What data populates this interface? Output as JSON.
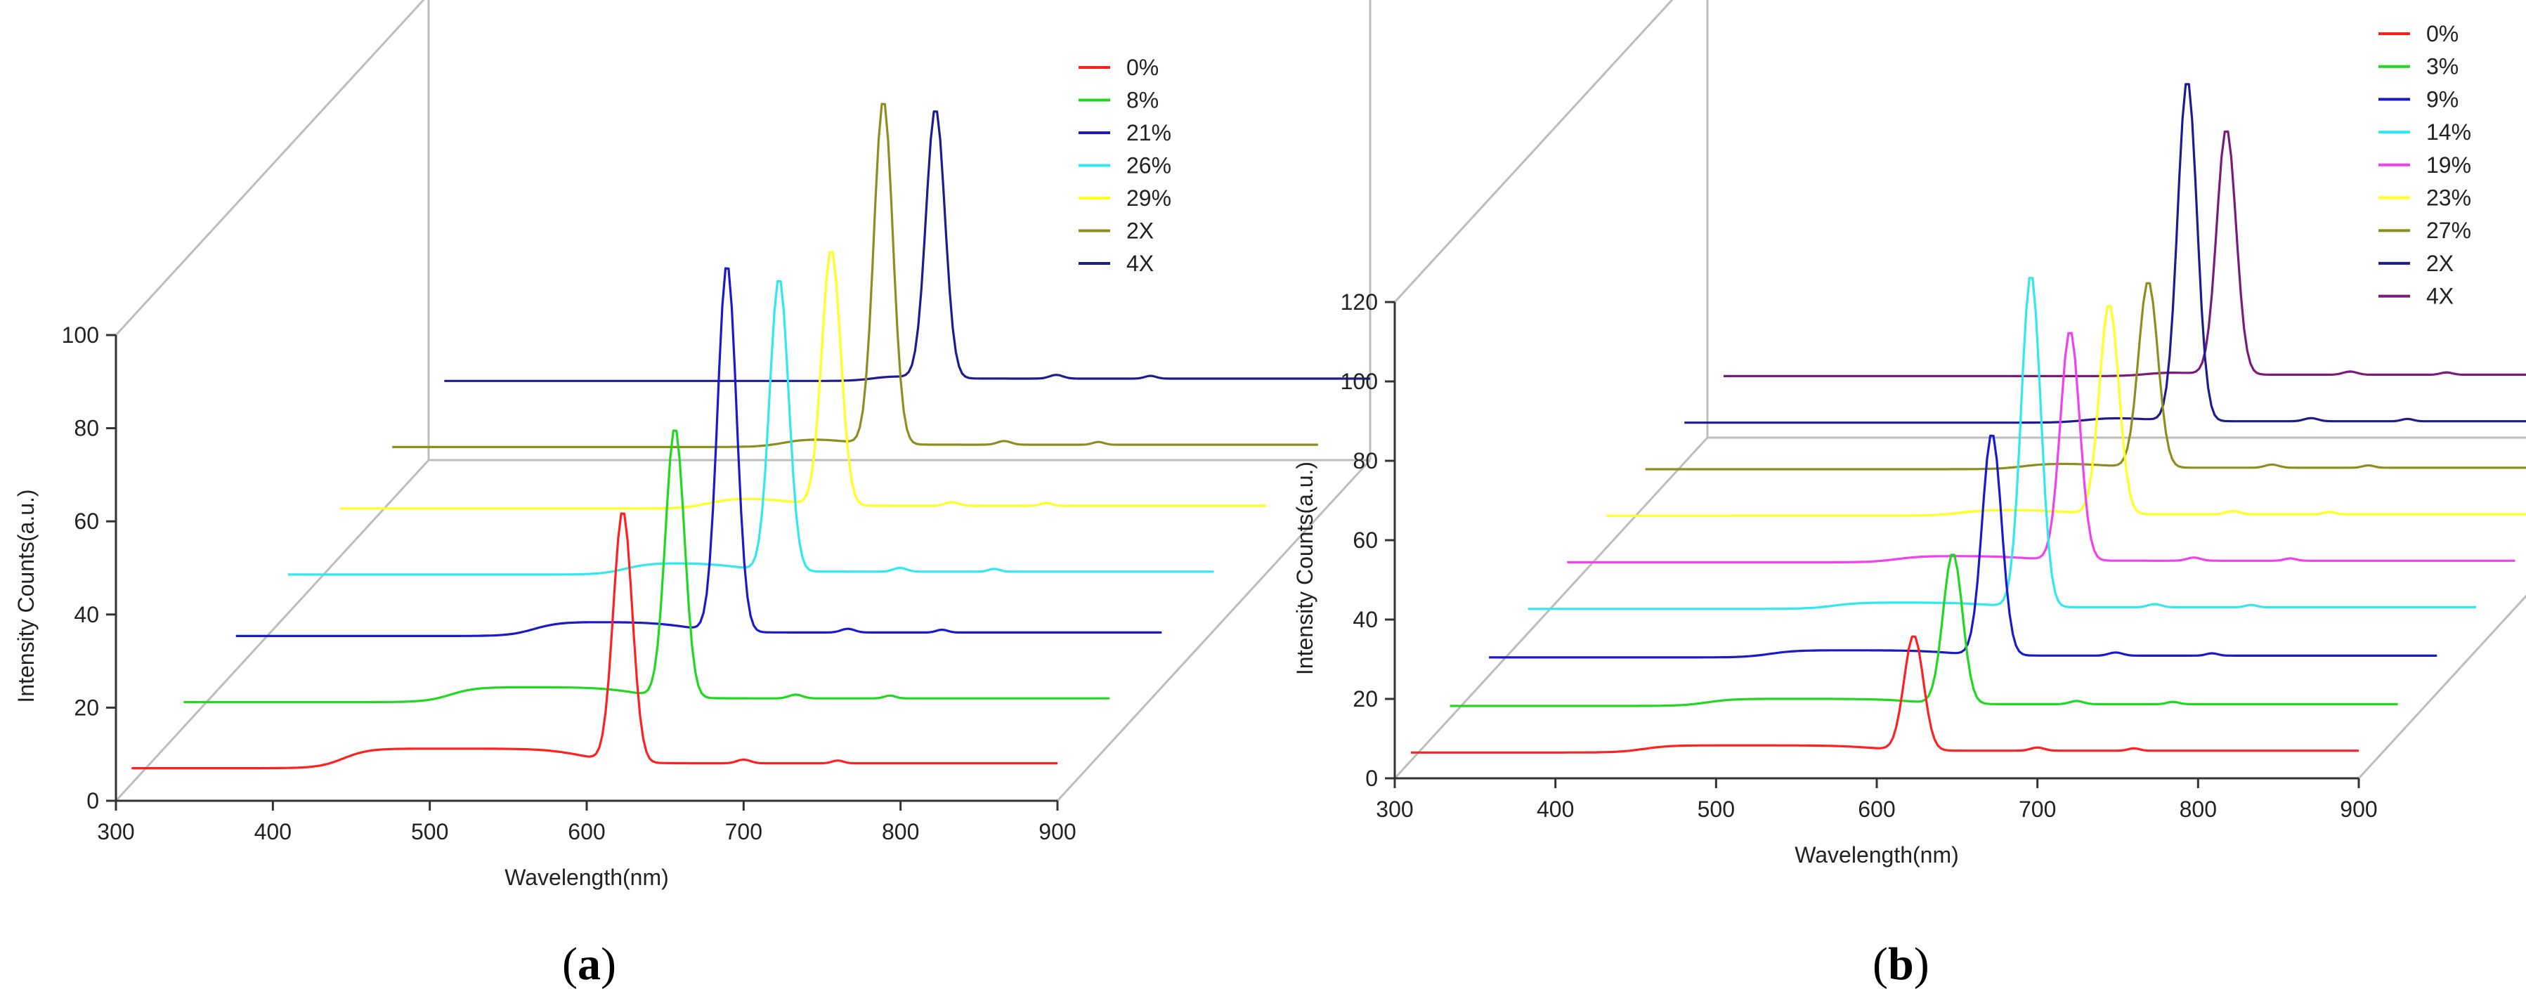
{
  "figure": {
    "panels": [
      {
        "id": "a",
        "label_open": "(",
        "label_letter": "a",
        "label_close": ")"
      },
      {
        "id": "b",
        "label_open": "(",
        "label_letter": "b",
        "label_close": ")"
      }
    ]
  },
  "chart_data": [
    {
      "type": "line",
      "style": "3d-waterfall",
      "panel": "a",
      "title": "",
      "xlabel": "Wavelength(nm)",
      "ylabel": "Intensity Counts(a.u.)",
      "xlim": [
        300,
        900
      ],
      "ylim": [
        0,
        100
      ],
      "xticks": [
        "300",
        "400",
        "500",
        "600",
        "700",
        "800",
        "900"
      ],
      "yticks": [
        "0",
        "20",
        "40",
        "60",
        "80",
        "100"
      ],
      "legend_position": "top-right",
      "series": [
        {
          "name": "0%",
          "color": "#ff2020",
          "baseline": 7,
          "bump_center": 465,
          "bump_height": 4.2,
          "peak_center": 623,
          "peak_height": 54
        },
        {
          "name": "8%",
          "color": "#20d820",
          "baseline": 9,
          "bump_center": 500,
          "bump_height": 3.2,
          "peak_center": 623,
          "peak_height": 58
        },
        {
          "name": "21%",
          "color": "#1a1acc",
          "baseline": 11,
          "bump_center": 520,
          "bump_height": 3.0,
          "peak_center": 623,
          "peak_height": 79
        },
        {
          "name": "26%",
          "color": "#30e8f0",
          "baseline": 12,
          "bump_center": 545,
          "bump_height": 2.5,
          "peak_center": 623,
          "peak_height": 63
        },
        {
          "name": "29%",
          "color": "#ffff20",
          "baseline": 14,
          "bump_center": 565,
          "bump_height": 2.3,
          "peak_center": 623,
          "peak_height": 55
        },
        {
          "name": "2X",
          "color": "#8e8e20",
          "baseline": 15,
          "bump_center": 580,
          "bump_height": 2.0,
          "peak_center": 623,
          "peak_height": 74
        },
        {
          "name": "4X",
          "color": "#1c1c90",
          "baseline": 17,
          "bump_center": 605,
          "bump_height": 2.0,
          "peak_center": 623,
          "peak_height": 58
        }
      ]
    },
    {
      "type": "line",
      "style": "3d-waterfall",
      "panel": "b",
      "title": "",
      "xlabel": "Wavelength(nm)",
      "ylabel": "Intensity Counts(a.u.)",
      "xlim": [
        300,
        900
      ],
      "ylim": [
        0,
        120
      ],
      "xticks": [
        "300",
        "400",
        "500",
        "600",
        "700",
        "800",
        "900"
      ],
      "yticks": [
        "0",
        "20",
        "40",
        "60",
        "80",
        "100",
        "120"
      ],
      "legend_position": "top-right",
      "series": [
        {
          "name": "0%",
          "color": "#ff2020",
          "baseline": 6.5,
          "bump_center": 475,
          "bump_height": 1.8,
          "peak_center": 623,
          "peak_height": 29
        },
        {
          "name": "3%",
          "color": "#20d820",
          "baseline": 7.5,
          "bump_center": 490,
          "bump_height": 1.8,
          "peak_center": 623,
          "peak_height": 38
        },
        {
          "name": "9%",
          "color": "#1a1acc",
          "baseline": 9.0,
          "bump_center": 505,
          "bump_height": 1.8,
          "peak_center": 623,
          "peak_height": 56
        },
        {
          "name": "14%",
          "color": "#30e8f0",
          "baseline": 10.5,
          "bump_center": 520,
          "bump_height": 1.6,
          "peak_center": 623,
          "peak_height": 84
        },
        {
          "name": "19%",
          "color": "#f040f0",
          "baseline": 11.5,
          "bump_center": 535,
          "bump_height": 1.6,
          "peak_center": 623,
          "peak_height": 58
        },
        {
          "name": "23%",
          "color": "#ffff20",
          "baseline": 12.5,
          "bump_center": 550,
          "bump_height": 1.5,
          "peak_center": 623,
          "peak_height": 53
        },
        {
          "name": "27%",
          "color": "#8e8e20",
          "baseline": 13.5,
          "bump_center": 565,
          "bump_height": 1.5,
          "peak_center": 623,
          "peak_height": 47
        },
        {
          "name": "2X",
          "color": "#1c1c90",
          "baseline": 14.5,
          "bump_center": 580,
          "bump_height": 1.4,
          "peak_center": 623,
          "peak_height": 86
        },
        {
          "name": "4X",
          "color": "#7a1a7a",
          "baseline": 15.5,
          "bump_center": 595,
          "bump_height": 1.4,
          "peak_center": 623,
          "peak_height": 62
        }
      ]
    }
  ]
}
